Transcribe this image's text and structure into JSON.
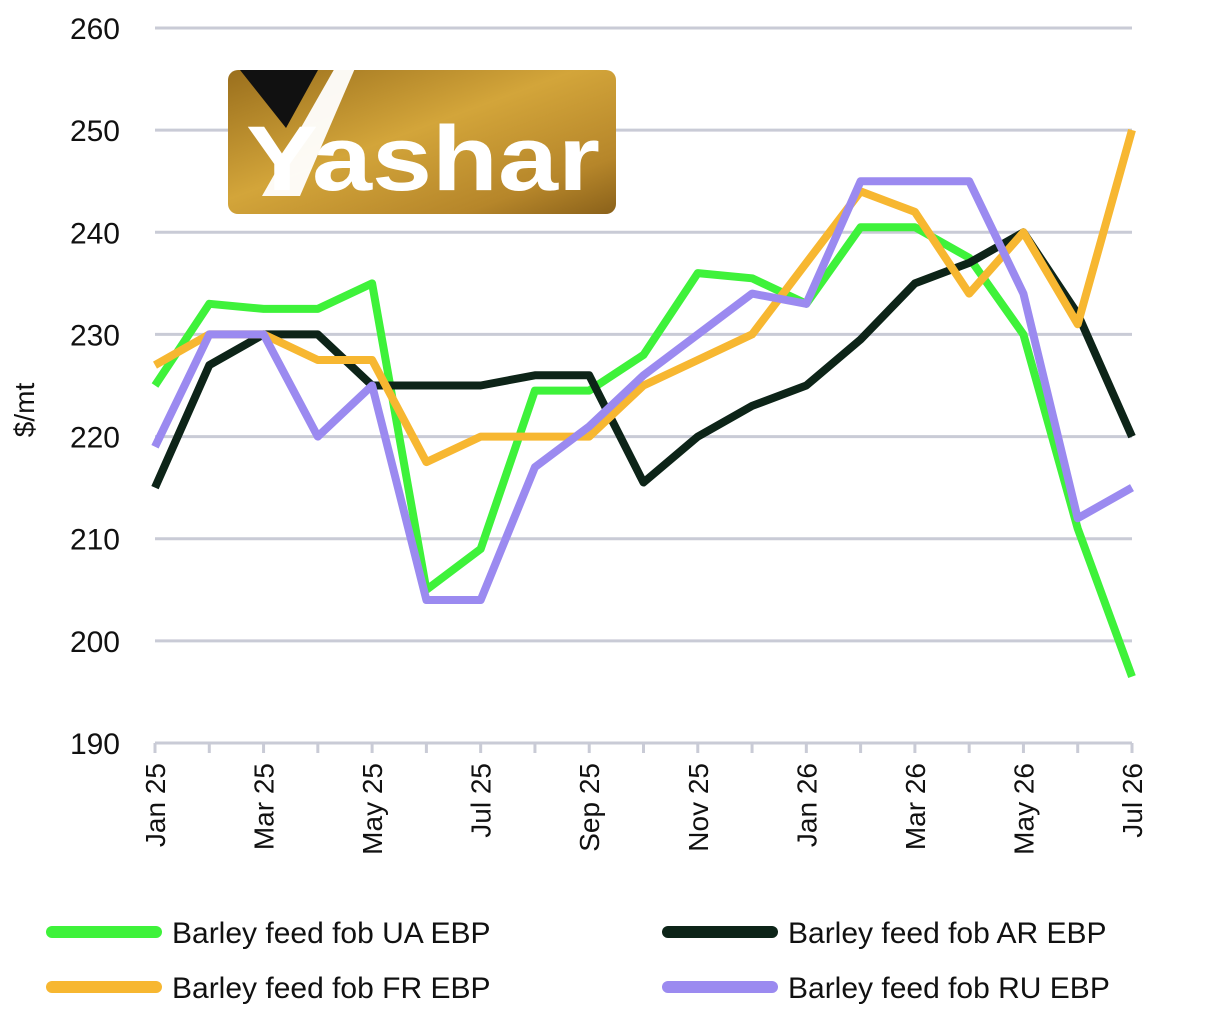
{
  "logo": {
    "text": "Yashar"
  },
  "chart_data": {
    "type": "line",
    "ylabel": "$/mt",
    "xlabel": "",
    "ylim": [
      190,
      260
    ],
    "yticks": [
      190,
      200,
      210,
      220,
      230,
      240,
      250,
      260
    ],
    "grid": "horizontal",
    "legend_placement": "bottom",
    "x": [
      "Jan 25",
      "Feb 25",
      "Mar 25",
      "Apr 25",
      "May 25",
      "Jun 25",
      "Jul 25",
      "Aug 25",
      "Sep 25",
      "Oct 25",
      "Nov 25",
      "Dec 25",
      "Jan 26",
      "Feb 26",
      "Mar 26",
      "Apr 26",
      "May 26",
      "Jun 26",
      "Jul 26"
    ],
    "x_tick_labels": [
      "Jan 25",
      "Mar 25",
      "May 25",
      "Jul 25",
      "Sep 25",
      "Nov 25",
      "Jan 26",
      "Mar 26",
      "May 26",
      "Jul 26"
    ],
    "series": [
      {
        "name": "Barley feed fob UA EBP",
        "color": "#3ef23a",
        "values": [
          225,
          233,
          232.5,
          232.5,
          235,
          205,
          209,
          224.5,
          224.5,
          228,
          236,
          235.5,
          233,
          240.5,
          240.5,
          237.5,
          230,
          211,
          196.5
        ]
      },
      {
        "name": "Barley feed fob AR EBP",
        "color": "#0d2418",
        "values": [
          215,
          227,
          230,
          230,
          225,
          225,
          225,
          226,
          226,
          215.5,
          220,
          223,
          225,
          229.5,
          235,
          237,
          240,
          232,
          220
        ]
      },
      {
        "name": "Barley feed fob FR EBP",
        "color": "#f7b731",
        "values": [
          227,
          230,
          230,
          227.5,
          227.5,
          217.5,
          220,
          220,
          220,
          225,
          227.5,
          230,
          237,
          244,
          242,
          234,
          240,
          231,
          250
        ]
      },
      {
        "name": "Barley feed fob RU EBP",
        "color": "#9b8af0",
        "values": [
          219,
          230,
          230,
          220,
          225,
          204,
          204,
          217,
          221,
          226,
          230,
          234,
          233,
          245,
          245,
          245,
          234,
          212,
          215
        ]
      }
    ]
  }
}
